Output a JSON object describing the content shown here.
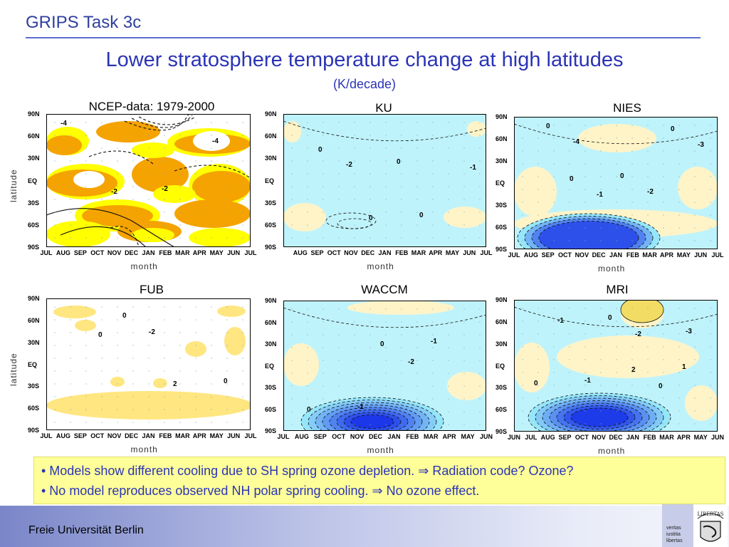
{
  "header": {
    "section": "GRIPS Task 3c"
  },
  "title": "Lower stratosphere temperature change at high latitudes",
  "subtitle": "(K/decade)",
  "axes": {
    "lat_ticks": [
      "90N",
      "60N",
      "30N",
      "EQ",
      "30S",
      "60S",
      "90S"
    ],
    "ylabel": "latitude",
    "xlabel": "month"
  },
  "panels": [
    {
      "id": "ncep",
      "title": "NCEP-data: 1979-2000",
      "months": [
        "JUL",
        "AUG",
        "SEP",
        "OCT",
        "NOV",
        "DEC",
        "JAN",
        "FEB",
        "MAR",
        "APR",
        "MAY",
        "JUN",
        "JUL"
      ],
      "contours": [
        "-4",
        "-2",
        "-2",
        "-4"
      ]
    },
    {
      "id": "ku",
      "title": "KU",
      "months": [
        "AUG",
        "SEP",
        "OCT",
        "NOV",
        "DEC",
        "JAN",
        "FEB",
        "MAR",
        "APR",
        "MAY",
        "JUN",
        "JUL"
      ],
      "contours": [
        "0",
        "0",
        "0",
        "-1",
        "-2",
        "0"
      ]
    },
    {
      "id": "nies",
      "title": "NIES",
      "months": [
        "JUL",
        "AUG",
        "SEP",
        "OCT",
        "NOV",
        "DEC",
        "JAN",
        "FEB",
        "MAR",
        "APR",
        "MAY",
        "JUN",
        "JUL"
      ],
      "contours": [
        "0",
        "0",
        "0",
        "0",
        "-1",
        "-2",
        "-3",
        "-4"
      ]
    },
    {
      "id": "fub",
      "title": "FUB",
      "months": [
        "JUL",
        "AUG",
        "SEP",
        "OCT",
        "NOV",
        "DEC",
        "JAN",
        "FEB",
        "MAR",
        "APR",
        "MAY",
        "JUN",
        "JUL"
      ],
      "contours": [
        "0",
        "2",
        "0",
        "0",
        "-2"
      ]
    },
    {
      "id": "waccm",
      "title": "WACCM",
      "months": [
        "JUL",
        "AUG",
        "SEP",
        "OCT",
        "NOV",
        "DEC",
        "JAN",
        "FEB",
        "MAR",
        "APR",
        "MAY",
        "JUN"
      ],
      "contours": [
        "0",
        "-1",
        "0",
        "-1",
        "-2"
      ]
    },
    {
      "id": "mri",
      "title": "MRI",
      "months": [
        "JUN",
        "JUL",
        "AUG",
        "SEP",
        "OCT",
        "NOV",
        "DEC",
        "JAN",
        "FEB",
        "MAR",
        "APR",
        "MAY",
        "JUN"
      ],
      "contours": [
        "2",
        "1",
        "-1",
        "0",
        "0",
        "0",
        "-1",
        "-2",
        "-3"
      ]
    }
  ],
  "notes": [
    "• Models show different cooling due to SH spring ozone depletion. ⇒ Radiation code? Ozone?",
    "• No model reproduces observed NH polar spring cooling. ⇒ No ozone effect."
  ],
  "footer": {
    "institution": "Freie Universität Berlin",
    "motto": [
      "veritas",
      "iustitia",
      "libertas"
    ],
    "seal_text": "LIBERTAS"
  },
  "colors": {
    "accent": "#2b34b5",
    "cooling_light": "#bff3fb",
    "warming": "#fff4c8",
    "ncep_orange": "#f5a300",
    "ncep_yellow": "#ffff00"
  }
}
